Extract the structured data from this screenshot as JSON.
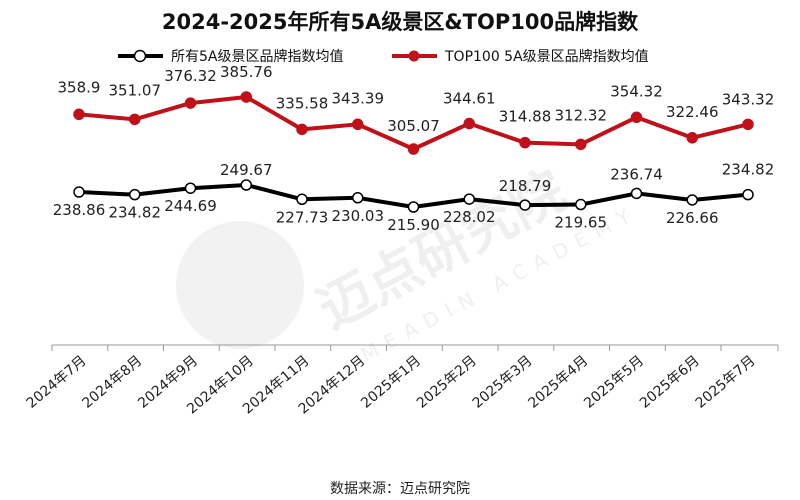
{
  "chart_data": {
    "type": "line",
    "title": "2024-2025年所有5A级景区&TOP100品牌指数",
    "categories": [
      "2024年7月",
      "2024年8月",
      "2024年9月",
      "2024年10月",
      "2024年11月",
      "2024年12月",
      "2025年1月",
      "2025年2月",
      "2025年3月",
      "2025年4月",
      "2025年5月",
      "2025年6月",
      "2025年7月"
    ],
    "series": [
      {
        "name": "所有5A级景区品牌指数均值",
        "color": "#000000",
        "values": [
          238.86,
          234.82,
          244.69,
          249.67,
          227.73,
          230.03,
          215.9,
          228.02,
          218.79,
          219.65,
          236.74,
          226.66,
          234.82
        ],
        "labels": [
          "238.86",
          "234.82",
          "244.69",
          "249.67",
          "227.73",
          "230.03",
          "215.90",
          "228.02",
          "218.79",
          "219.65",
          "236.74",
          "226.66",
          "234.82"
        ]
      },
      {
        "name": "TOP100 5A级景区品牌指数均值",
        "color": "#c0111a",
        "values": [
          358.9,
          351.07,
          376.32,
          385.76,
          335.58,
          343.39,
          305.07,
          344.61,
          314.88,
          312.32,
          354.32,
          322.46,
          343.32
        ],
        "labels": [
          "358.9",
          "351.07",
          "376.32",
          "385.76",
          "335.58",
          "343.39",
          "305.07",
          "344.61",
          "314.88",
          "312.32",
          "354.32",
          "322.46",
          "343.32"
        ]
      }
    ],
    "xlabel": "",
    "ylabel": "",
    "grid": false,
    "legend_position": "top"
  },
  "source": "数据来源：迈点研究院",
  "watermark": {
    "text": "迈点研究院",
    "sub": "MEADIN ACADEMY"
  }
}
